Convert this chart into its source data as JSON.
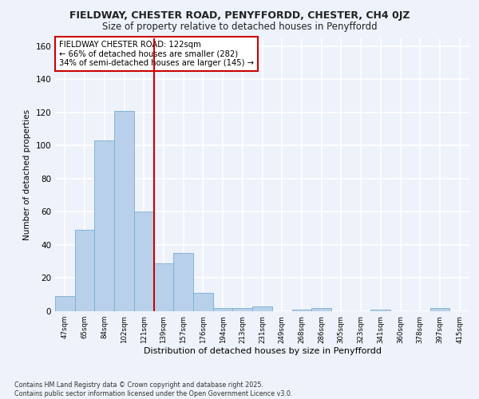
{
  "title1": "FIELDWAY, CHESTER ROAD, PENYFFORDD, CHESTER, CH4 0JZ",
  "title2": "Size of property relative to detached houses in Penyffordd",
  "xlabel": "Distribution of detached houses by size in Penyffordd",
  "ylabel": "Number of detached properties",
  "bar_labels": [
    "47sqm",
    "65sqm",
    "84sqm",
    "102sqm",
    "121sqm",
    "139sqm",
    "157sqm",
    "176sqm",
    "194sqm",
    "213sqm",
    "231sqm",
    "249sqm",
    "268sqm",
    "286sqm",
    "305sqm",
    "323sqm",
    "341sqm",
    "360sqm",
    "378sqm",
    "397sqm",
    "415sqm"
  ],
  "bar_values": [
    9,
    49,
    103,
    121,
    60,
    29,
    35,
    11,
    2,
    2,
    3,
    0,
    1,
    2,
    0,
    0,
    1,
    0,
    0,
    2,
    0
  ],
  "bar_color": "#b8d0ea",
  "bar_edge_color": "#7aaed0",
  "vline_index": 4,
  "vline_color": "#cc0000",
  "annotation_title": "FIELDWAY CHESTER ROAD: 122sqm",
  "annotation_line1": "← 66% of detached houses are smaller (282)",
  "annotation_line2": "34% of semi-detached houses are larger (145) →",
  "annotation_box_color": "#cc0000",
  "background_color": "#eef2fa",
  "grid_color": "#ffffff",
  "footer1": "Contains HM Land Registry data © Crown copyright and database right 2025.",
  "footer2": "Contains public sector information licensed under the Open Government Licence v3.0.",
  "ylim": [
    0,
    165
  ],
  "yticks": [
    0,
    20,
    40,
    60,
    80,
    100,
    120,
    140,
    160
  ]
}
